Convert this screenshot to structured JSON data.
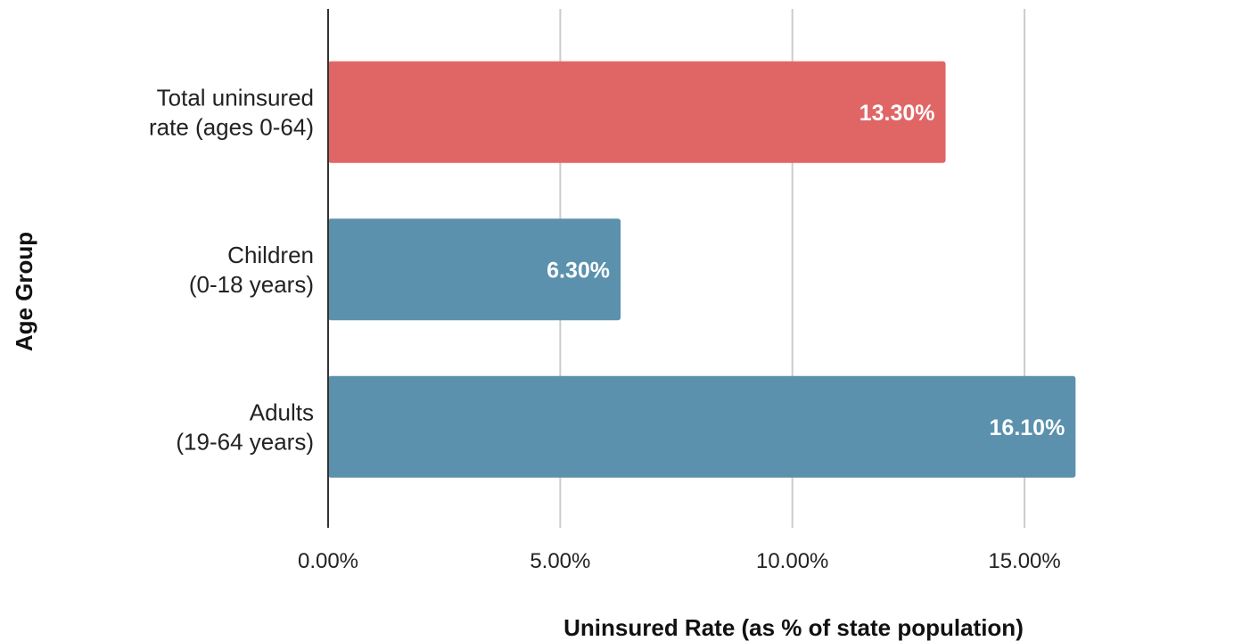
{
  "chart_data": {
    "type": "bar",
    "orientation": "horizontal",
    "categories": [
      [
        "Total uninsured",
        "rate (ages 0-64)"
      ],
      [
        "Children",
        "(0-18 years)"
      ],
      [
        "Adults",
        "(19-64 years)"
      ]
    ],
    "values": [
      13.3,
      6.3,
      16.1
    ],
    "data_labels": [
      "13.30%",
      "6.30%",
      "16.10%"
    ],
    "bar_colors": [
      "#e06666",
      "#5b91ad",
      "#5b91ad"
    ],
    "xlabel": "Uninsured Rate (as % of state population)",
    "ylabel": "Age Group",
    "xlim": [
      0,
      19
    ],
    "x_ticks": [
      0,
      5,
      10,
      15
    ],
    "x_tick_labels": [
      "0.00%",
      "5.00%",
      "10.00%",
      "15.00%"
    ],
    "grid": "vertical",
    "legend": "none"
  }
}
